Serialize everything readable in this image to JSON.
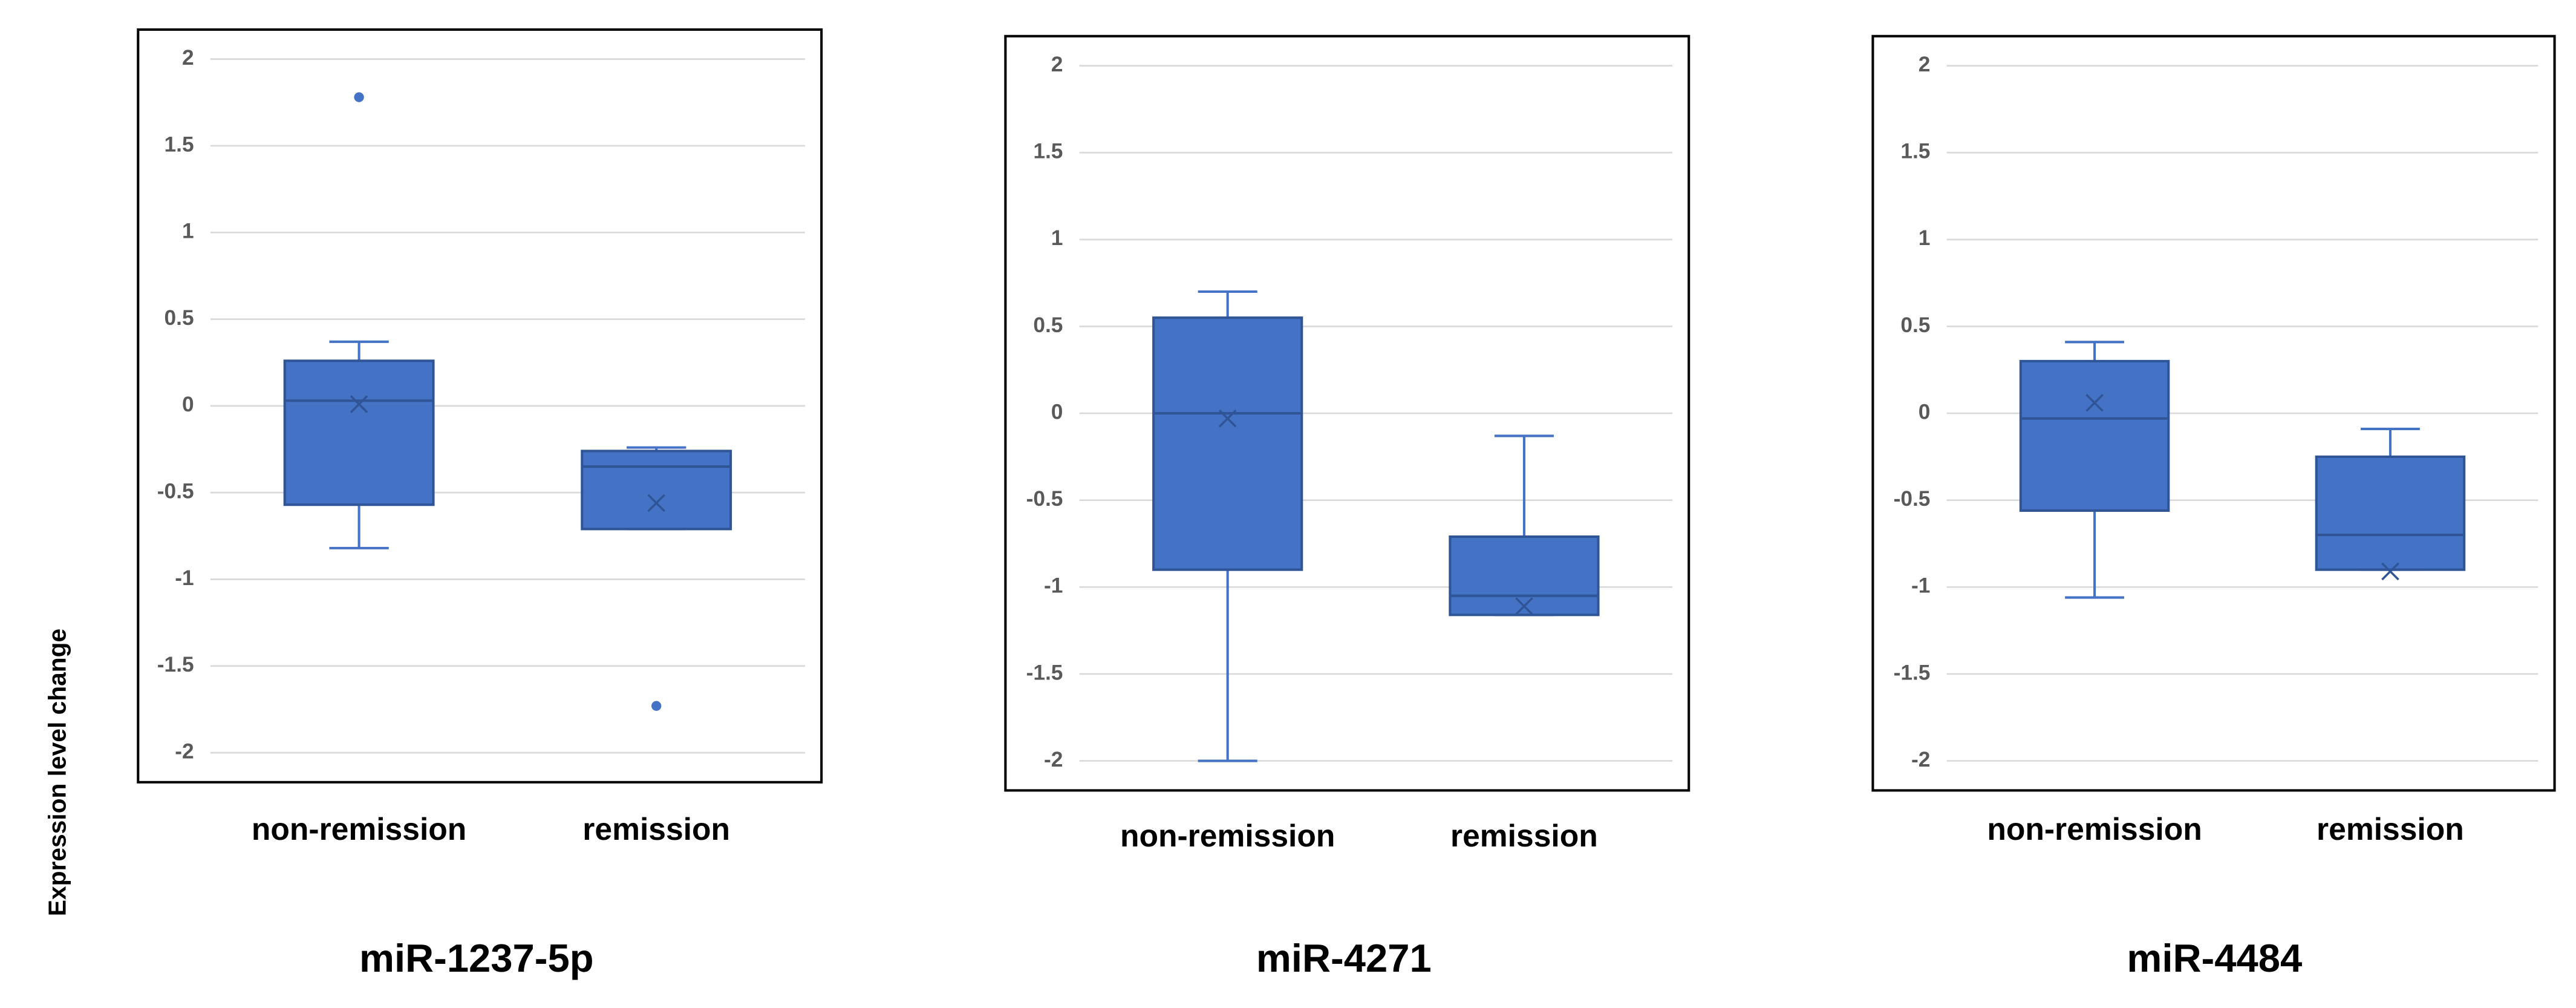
{
  "ylabel": "Expression level change",
  "chart_data": [
    {
      "type": "box",
      "title": "miR-1237-5p",
      "categories": [
        "non-remission",
        "remission"
      ],
      "color": "#4472c4",
      "min": [
        -0.82,
        -0.71
      ],
      "q1": [
        -0.57,
        -0.71
      ],
      "median": [
        0.03,
        -0.35
      ],
      "q3": [
        0.26,
        -0.26
      ],
      "max": [
        0.37,
        -0.24
      ],
      "mean": [
        0.01,
        -0.56
      ],
      "outliers": [
        [
          1.78
        ],
        [
          -1.73
        ]
      ],
      "ylim": [
        -2.17,
        2.17
      ],
      "yticks": [
        2,
        1.5,
        1,
        0.5,
        0,
        -0.5,
        -1,
        -1.5,
        -2
      ],
      "grid": true
    },
    {
      "type": "box",
      "title": "miR-4271",
      "categories": [
        "non-remission",
        "remission"
      ],
      "color": "#4472c4",
      "min": [
        -2.0,
        -1.16
      ],
      "q1": [
        -0.9,
        -1.16
      ],
      "median": [
        0.0,
        -1.05
      ],
      "q3": [
        0.55,
        -0.71
      ],
      "max": [
        0.7,
        -0.13
      ],
      "mean": [
        -0.03,
        -1.11
      ],
      "outliers": [
        [],
        []
      ],
      "ylim": [
        -2.17,
        2.17
      ],
      "yticks": [
        2,
        1.5,
        1,
        0.5,
        0,
        -0.5,
        -1,
        -1.5,
        -2
      ],
      "grid": true
    },
    {
      "type": "box",
      "title": "miR-4484",
      "categories": [
        "non-remission",
        "remission"
      ],
      "color": "#4472c4",
      "min": [
        -1.06,
        -0.9
      ],
      "q1": [
        -0.56,
        -0.9
      ],
      "median": [
        -0.03,
        -0.7
      ],
      "q3": [
        0.3,
        -0.25
      ],
      "max": [
        0.41,
        -0.09
      ],
      "mean": [
        0.06,
        -0.91
      ],
      "outliers": [
        [],
        []
      ],
      "ylim": [
        -2.17,
        2.17
      ],
      "yticks": [
        2,
        1.5,
        1,
        0.5,
        0,
        -0.5,
        -1,
        -1.5,
        -2
      ],
      "grid": true
    }
  ]
}
